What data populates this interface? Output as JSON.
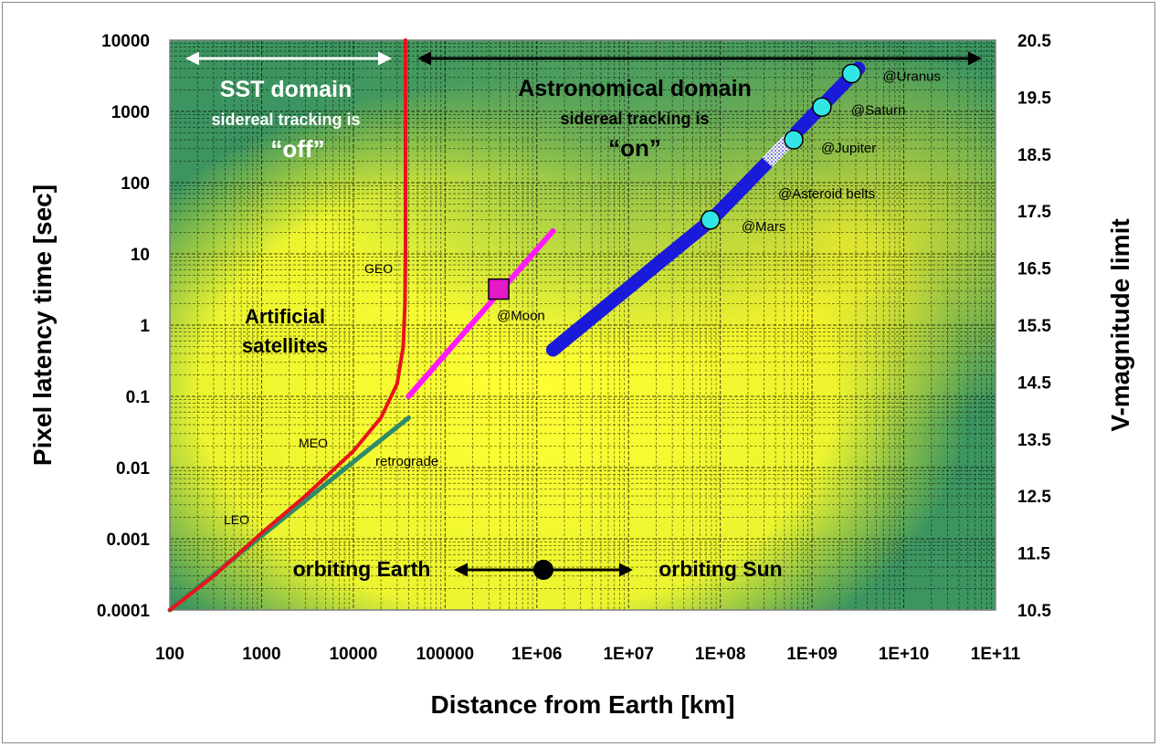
{
  "chart_data": {
    "type": "line",
    "xlabel": "Distance from Earth [km]",
    "ylabel": "Pixel latency time [sec]",
    "y2label": "V-magnitude limit",
    "x_scale": "log",
    "y_scale": "log",
    "xlim": [
      100,
      100000000000
    ],
    "ylim": [
      0.0001,
      10000
    ],
    "y2lim": [
      10.5,
      20.5
    ],
    "grid": true,
    "x_ticks": [
      "100",
      "1000",
      "10000",
      "100000",
      "1E+06",
      "1E+07",
      "1E+08",
      "1E+09",
      "1E+10",
      "1E+11"
    ],
    "y_ticks": [
      "0.0001",
      "0.001",
      "0.01",
      "0.1",
      "1",
      "10",
      "100",
      "1000",
      "10000"
    ],
    "y2_ticks": [
      "10.5",
      "11.5",
      "12.5",
      "13.5",
      "14.5",
      "15.5",
      "16.5",
      "17.5",
      "18.5",
      "19.5",
      "20.5"
    ],
    "colors": {
      "prograde": "#e8141b",
      "retrograde": "#2e8b6a",
      "moon_line": "#ff1aff",
      "planet_band": "#1a1adb",
      "planet_marker": "#33e6e6",
      "moon_marker": "#e619c8",
      "background_light": "#ffff33",
      "background_dark": "#3a9464"
    },
    "series": [
      {
        "name": "prograde",
        "color": "#e8141b",
        "x": [
          100,
          300,
          1000,
          3000,
          10000,
          20000,
          30000,
          35000,
          36500,
          37000,
          37000
        ],
        "y": [
          0.0001,
          0.0003,
          0.0012,
          0.004,
          0.017,
          0.05,
          0.15,
          0.5,
          2,
          10,
          10000
        ]
      },
      {
        "name": "retrograde",
        "color": "#2e8b6a",
        "x": [
          100,
          1000,
          10000,
          40000
        ],
        "y": [
          0.0001,
          0.0011,
          0.012,
          0.05
        ]
      },
      {
        "name": "Moon line",
        "color": "#ff1aff",
        "x": [
          40000,
          1500000
        ],
        "y": [
          0.1,
          21
        ]
      },
      {
        "name": "Planet band",
        "color": "#1a1adb",
        "x": [
          1500000,
          80000000,
          3200000000
        ],
        "y": [
          0.45,
          30,
          4000
        ]
      }
    ],
    "points": [
      {
        "label": "@Moon",
        "x": 384000,
        "y": 3.2,
        "marker": "square",
        "color": "#e619c8"
      },
      {
        "label": "@Mars",
        "x": 78000000,
        "y": 30,
        "marker": "circle",
        "color": "#33e6e6"
      },
      {
        "label": "@Jupiter",
        "x": 630000000,
        "y": 400,
        "marker": "circle",
        "color": "#33e6e6"
      },
      {
        "label": "@Saturn",
        "x": 1280000000,
        "y": 1150,
        "marker": "circle",
        "color": "#33e6e6"
      },
      {
        "label": "@Uranus",
        "x": 2700000000,
        "y": 3400,
        "marker": "circle",
        "color": "#33e6e6"
      }
    ],
    "annotations": {
      "sst_domain": "SST domain",
      "sst_tracking_line": "sidereal tracking is",
      "sst_tracking_state": "“off”",
      "astro_domain": "Astronomical domain",
      "astro_tracking_line": "sidereal tracking is",
      "astro_tracking_state": "“on”",
      "artificial_1": "Artificial",
      "artificial_2": "satellites",
      "geo": "GEO",
      "meo": "MEO",
      "leo": "LEO",
      "retrograde": "retrograde",
      "asteroid_belts": "@Asteroid belts",
      "orbiting_earth": "orbiting Earth",
      "orbiting_sun": "orbiting Sun"
    }
  }
}
